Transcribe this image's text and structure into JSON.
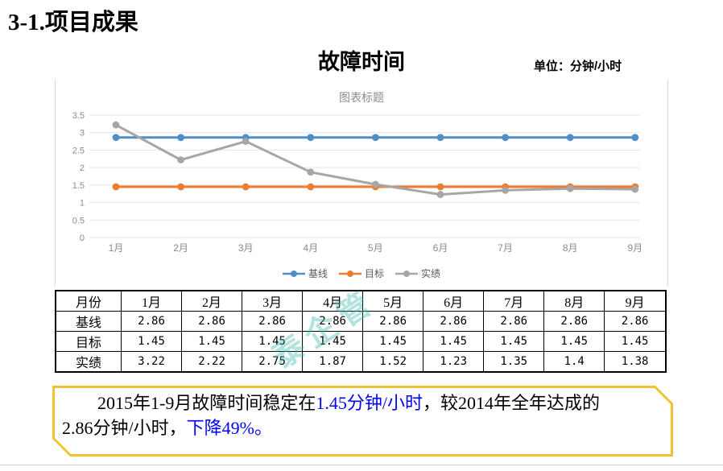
{
  "page": {
    "title": "3-1.项目成果"
  },
  "header": {
    "chart_heading": "故障时间",
    "unit_label": "单位：分钟/小时"
  },
  "chart_data": {
    "type": "line",
    "title": "图表标题",
    "categories": [
      "1月",
      "2月",
      "3月",
      "4月",
      "5月",
      "6月",
      "7月",
      "8月",
      "9月"
    ],
    "series": [
      {
        "name": "基线",
        "color": "#4e8fca",
        "values": [
          2.86,
          2.86,
          2.86,
          2.86,
          2.86,
          2.86,
          2.86,
          2.86,
          2.86
        ]
      },
      {
        "name": "目标",
        "color": "#ed7d31",
        "values": [
          1.45,
          1.45,
          1.45,
          1.45,
          1.45,
          1.45,
          1.45,
          1.45,
          1.45
        ]
      },
      {
        "name": "实绩",
        "color": "#a6a6a6",
        "values": [
          3.22,
          2.22,
          2.75,
          1.87,
          1.52,
          1.23,
          1.35,
          1.4,
          1.38
        ]
      }
    ],
    "ylim": [
      0,
      3.5
    ],
    "ytick_step": 0.5,
    "grid": true,
    "legend_position": "bottom",
    "axis_label_color": "#8a8a8a",
    "gridline_color": "#e4e4e4"
  },
  "table": {
    "corner_label": "月份"
  },
  "watermark": {
    "text": "泰企管",
    "color": "#3eb9aa"
  },
  "callout": {
    "border_color": "#f0c12f",
    "accent_color": "#0000ff",
    "lines": [
      {
        "indent": true,
        "segments": [
          {
            "text": "2015年1-9月故障时间稳定在",
            "accent": false
          },
          {
            "text": "1.45分钟/小时",
            "accent": true
          },
          {
            "text": "，较2014年全年达成的",
            "accent": false
          }
        ]
      },
      {
        "indent": false,
        "segments": [
          {
            "text": "2.86分钟/小时，",
            "accent": false
          },
          {
            "text": "下降49%。",
            "accent": true
          }
        ]
      }
    ]
  }
}
